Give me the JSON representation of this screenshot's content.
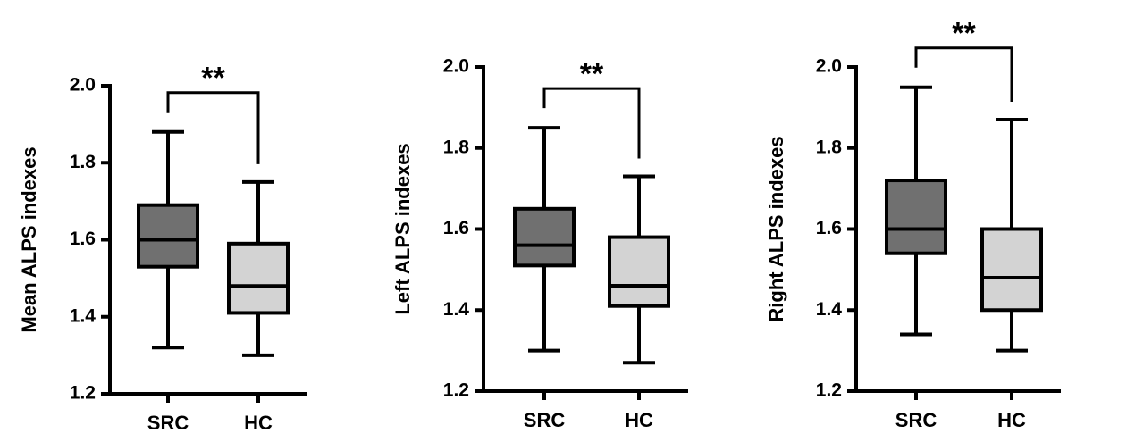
{
  "chart_data": [
    {
      "type": "box",
      "ylabel": "Mean ALPS indexes",
      "categories": [
        "SRC",
        "HC"
      ],
      "boxes": [
        {
          "min": 1.32,
          "q1": 1.53,
          "median": 1.6,
          "q3": 1.69,
          "max": 1.88
        },
        {
          "min": 1.3,
          "q1": 1.41,
          "median": 1.48,
          "q3": 1.59,
          "max": 1.75
        }
      ],
      "colors": [
        "#707070",
        "#d3d3d3"
      ],
      "annotation": "**",
      "ylim": [
        1.2,
        2.0
      ],
      "yticks": [
        1.2,
        1.4,
        1.6,
        1.8,
        {
          "value": 2.0,
          "label": "2.0"
        }
      ]
    },
    {
      "type": "box",
      "ylabel": "Left ALPS indexes",
      "categories": [
        "SRC",
        "HC"
      ],
      "boxes": [
        {
          "min": 1.3,
          "q1": 1.51,
          "median": 1.56,
          "q3": 1.65,
          "max": 1.85
        },
        {
          "min": 1.27,
          "q1": 1.41,
          "median": 1.46,
          "q3": 1.58,
          "max": 1.73
        }
      ],
      "colors": [
        "#707070",
        "#d3d3d3"
      ],
      "annotation": "**",
      "ylim": [
        1.2,
        2.0
      ],
      "yticks": [
        1.2,
        1.4,
        1.6,
        1.8,
        {
          "value": 2.0,
          "label": "2.0"
        }
      ]
    },
    {
      "type": "box",
      "ylabel": "Right ALPS indexes",
      "categories": [
        "SRC",
        "HC"
      ],
      "boxes": [
        {
          "min": 1.34,
          "q1": 1.54,
          "median": 1.6,
          "q3": 1.72,
          "max": 1.95
        },
        {
          "min": 1.3,
          "q1": 1.4,
          "median": 1.48,
          "q3": 1.6,
          "max": 1.87
        }
      ],
      "colors": [
        "#707070",
        "#d3d3d3"
      ],
      "annotation": "**",
      "ylim": [
        1.2,
        2.0
      ],
      "yticks": [
        1.2,
        1.4,
        1.6,
        1.8,
        {
          "value": 2.0,
          "label": "2.0"
        }
      ]
    }
  ]
}
